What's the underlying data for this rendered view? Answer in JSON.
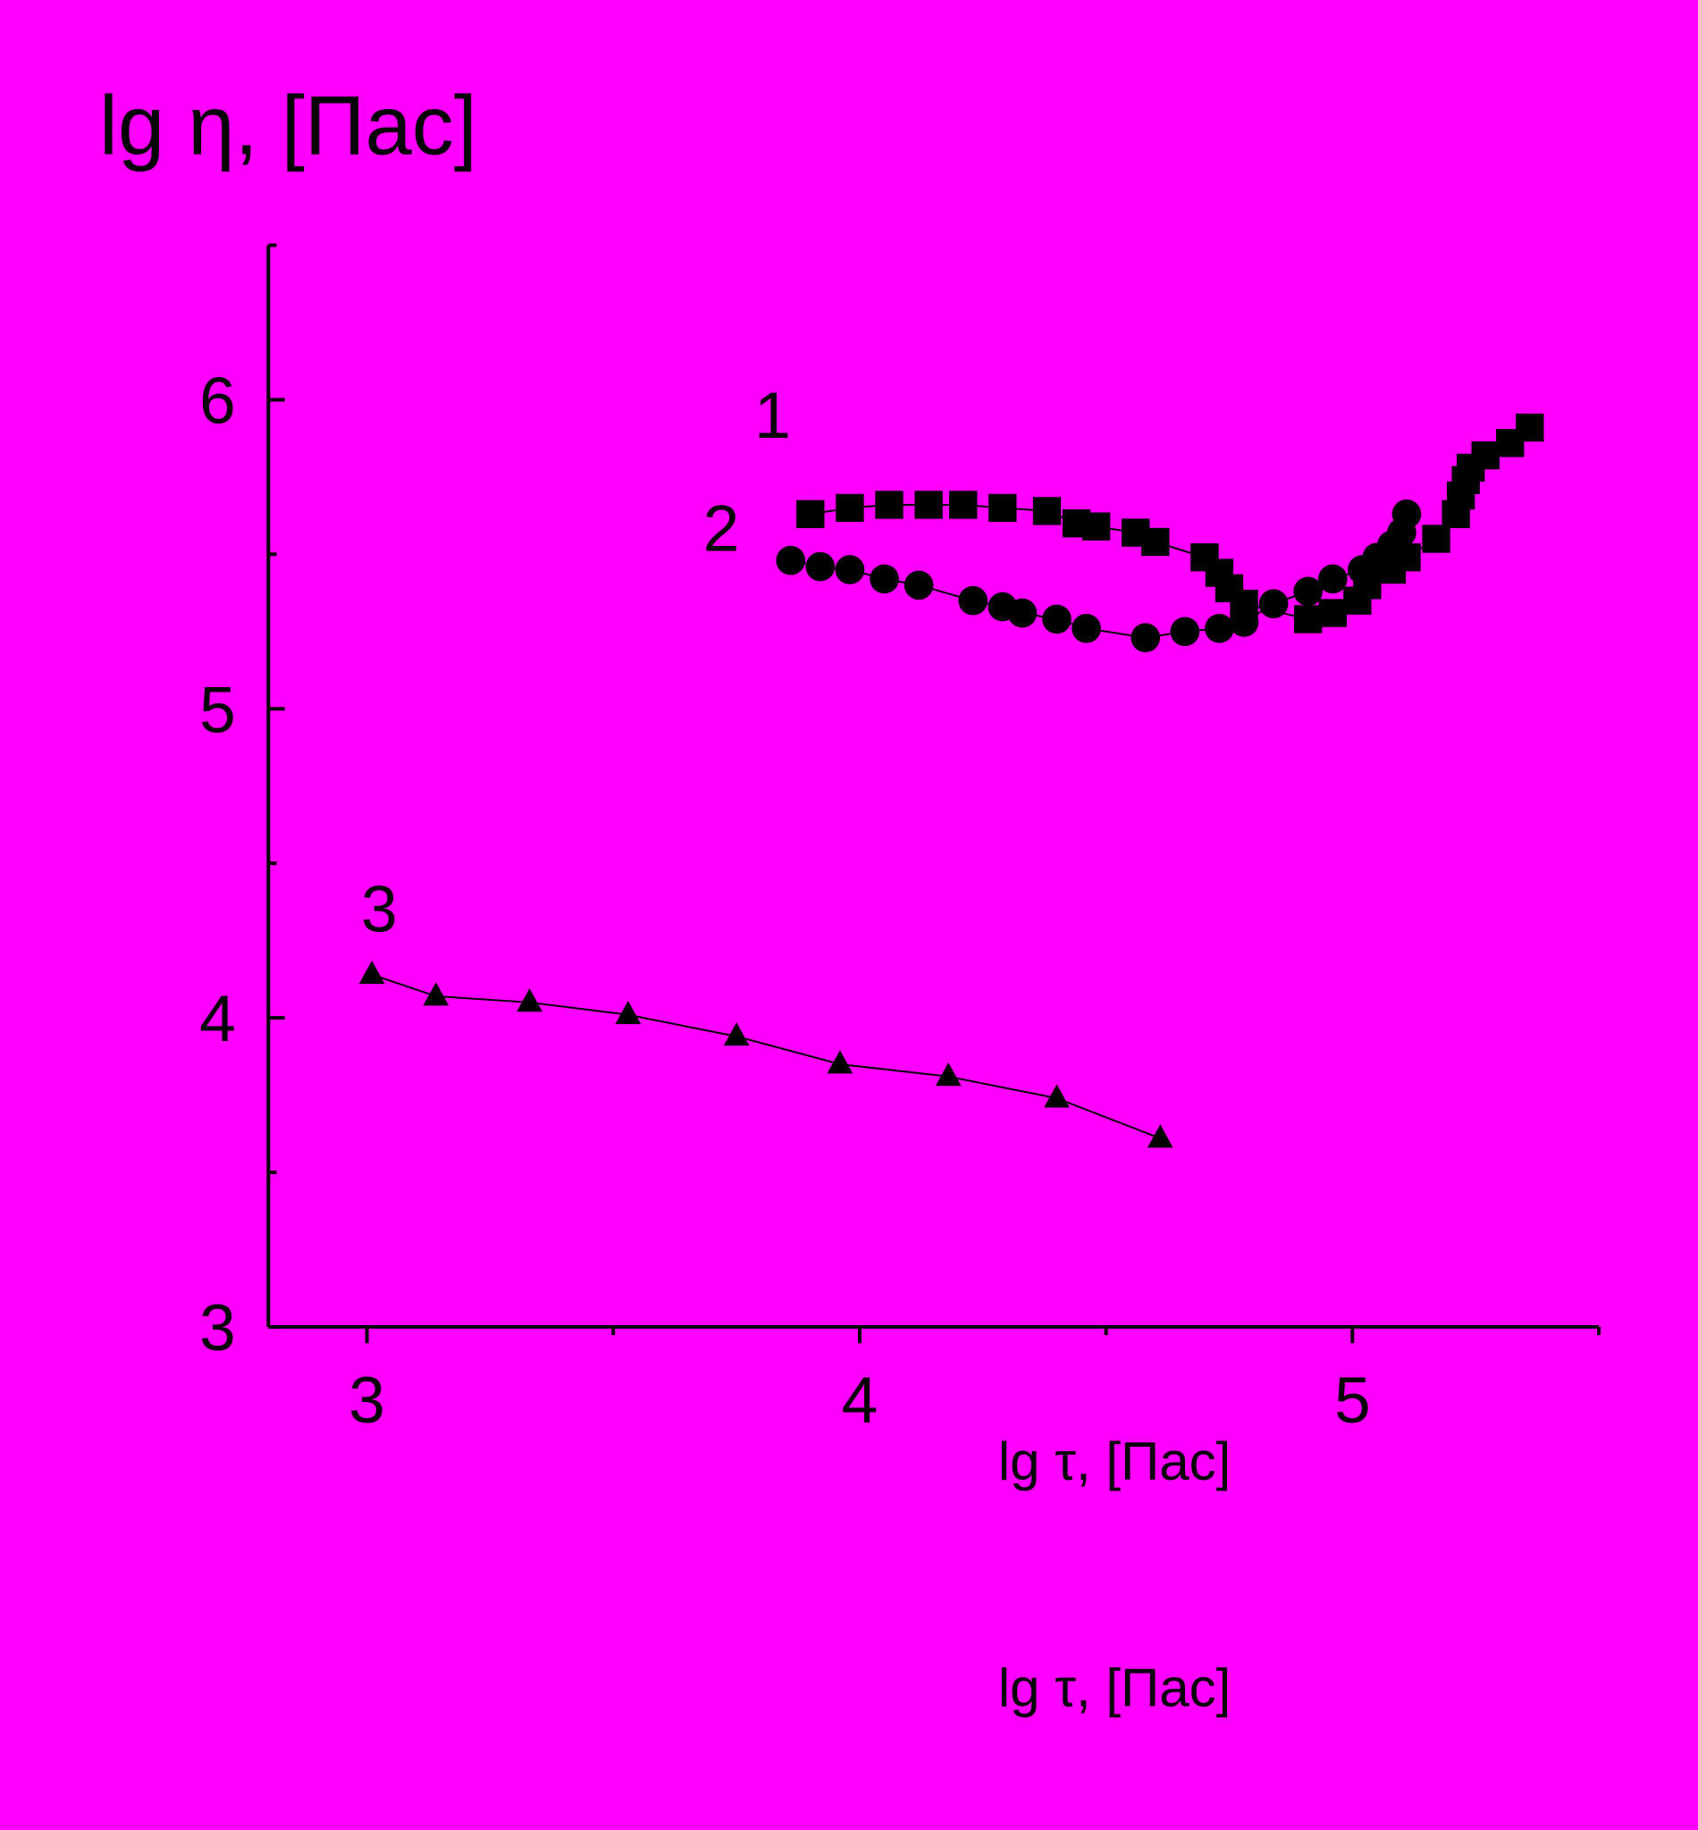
{
  "chart_data": {
    "type": "line",
    "title": "lg η, [Пас]",
    "xlabel": "lg τ, [Пас]",
    "footer_label": "lg τ, [Пас]",
    "background": "#ff00ff",
    "xlim": [
      2.8,
      5.5
    ],
    "ylim": [
      3,
      6.5
    ],
    "xticks": [
      3,
      4,
      5
    ],
    "yticks": [
      3,
      4,
      5,
      6
    ],
    "xminor": [
      3.5,
      4.5,
      5.5
    ],
    "yminor": [
      3.5,
      4.5,
      5.5,
      6.5
    ],
    "series": [
      {
        "name": "1",
        "color": "#000000",
        "marker": "square",
        "x": [
          3.9,
          3.98,
          4.06,
          4.14,
          4.21,
          4.29,
          4.38,
          4.44,
          4.48,
          4.56,
          4.6,
          4.7,
          4.73,
          4.75,
          4.78,
          4.91,
          4.96,
          5.01,
          5.03,
          5.08,
          5.11,
          5.17,
          5.21,
          5.22,
          5.23,
          5.24,
          5.27,
          5.32,
          5.36
        ],
        "values": [
          5.63,
          5.65,
          5.66,
          5.66,
          5.66,
          5.65,
          5.64,
          5.6,
          5.59,
          5.57,
          5.54,
          5.49,
          5.44,
          5.39,
          5.34,
          5.29,
          5.31,
          5.35,
          5.4,
          5.45,
          5.49,
          5.55,
          5.63,
          5.69,
          5.74,
          5.78,
          5.82,
          5.86,
          5.91
        ]
      },
      {
        "name": "2",
        "color": "#000000",
        "marker": "circle",
        "x": [
          3.86,
          3.92,
          3.98,
          4.05,
          4.12,
          4.23,
          4.29,
          4.33,
          4.4,
          4.46,
          4.58,
          4.66,
          4.73,
          4.78,
          4.84,
          4.91,
          4.96,
          5.02,
          5.05,
          5.08,
          5.1,
          5.11
        ],
        "values": [
          5.48,
          5.46,
          5.45,
          5.42,
          5.4,
          5.35,
          5.33,
          5.31,
          5.29,
          5.26,
          5.23,
          5.25,
          5.26,
          5.28,
          5.34,
          5.38,
          5.42,
          5.45,
          5.49,
          5.53,
          5.57,
          5.63
        ]
      },
      {
        "name": "3",
        "color": "#000000",
        "marker": "triangle",
        "x": [
          3.01,
          3.14,
          3.33,
          3.53,
          3.75,
          3.96,
          4.18,
          4.4,
          4.61
        ],
        "values": [
          4.14,
          4.07,
          4.05,
          4.01,
          3.94,
          3.85,
          3.81,
          3.74,
          3.61
        ]
      }
    ]
  }
}
